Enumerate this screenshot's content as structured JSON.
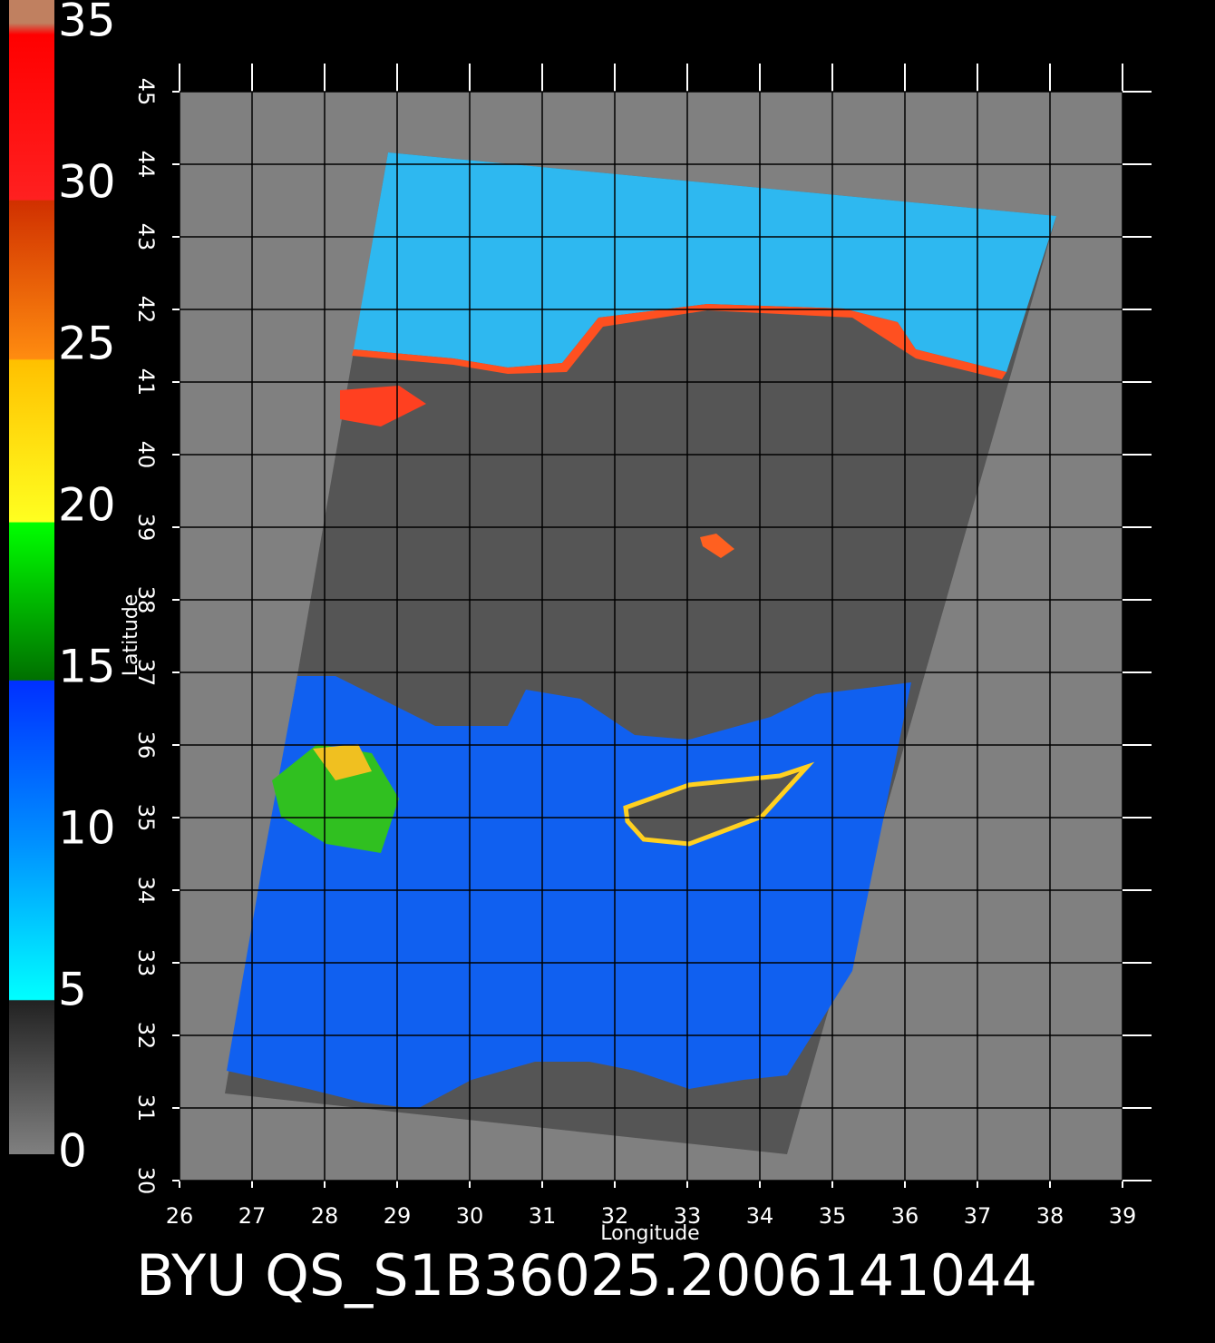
{
  "title": "BYU QS_S1B36025.2006141044",
  "colorbar": {
    "lim": [
      0,
      35
    ],
    "ticks": [
      0,
      5,
      10,
      15,
      20,
      25,
      30,
      35
    ]
  },
  "map": {
    "xlim": [
      26,
      39
    ],
    "ylim": [
      30,
      45
    ],
    "xticks": [
      26,
      27,
      28,
      29,
      30,
      31,
      32,
      33,
      34,
      35,
      36,
      37,
      38,
      39
    ],
    "yticks": [
      30,
      31,
      32,
      33,
      34,
      35,
      36,
      37,
      38,
      39,
      40,
      41,
      42,
      43,
      44,
      45
    ],
    "xlabel": "Longitude",
    "ylabel": "Latitude"
  }
}
